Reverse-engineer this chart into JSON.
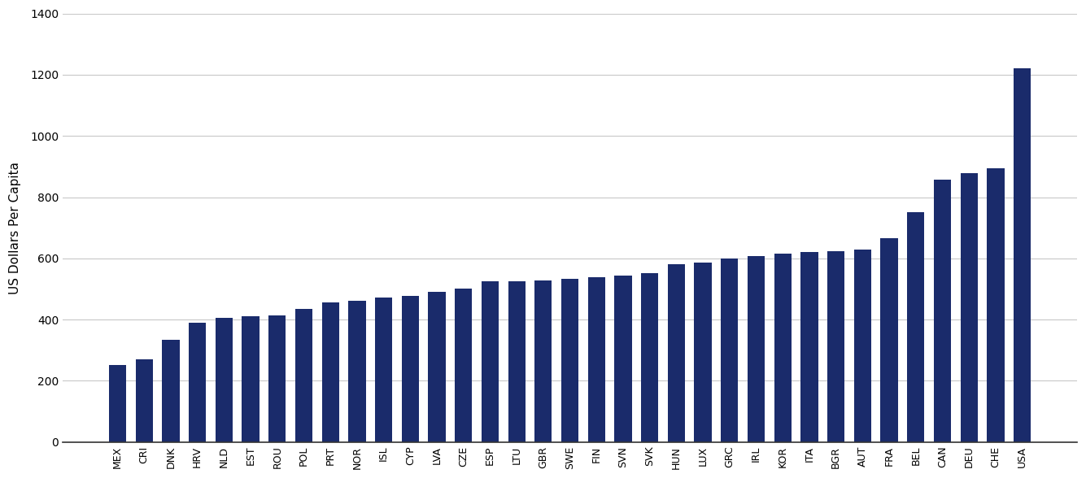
{
  "categories": [
    "MEX",
    "CRI",
    "DNK",
    "HRV",
    "NLD",
    "EST",
    "ROU",
    "POL",
    "PRT",
    "NOR",
    "ISL",
    "CYP",
    "LVA",
    "CZE",
    "ESP",
    "LTU",
    "GBR",
    "SWE",
    "FIN",
    "SVN",
    "SVK",
    "HUN",
    "LUX",
    "GRC",
    "IRL",
    "KOR",
    "ITA",
    "BGR",
    "AUT",
    "FRA",
    "BEL",
    "CAN",
    "DEU",
    "CHE",
    "USA"
  ],
  "values": [
    252,
    270,
    333,
    390,
    405,
    410,
    415,
    435,
    455,
    462,
    472,
    478,
    490,
    502,
    525,
    525,
    527,
    532,
    538,
    545,
    552,
    580,
    585,
    600,
    607,
    615,
    620,
    624,
    628,
    665,
    750,
    858,
    878,
    895,
    1220
  ],
  "bar_color": "#1a2b6b",
  "ylabel": "US Dollars Per Capita",
  "ylim": [
    0,
    1400
  ],
  "yticks": [
    0,
    200,
    400,
    600,
    800,
    1000,
    1200,
    1400
  ],
  "background_color": "#ffffff",
  "grid_color": "#c8c8c8"
}
